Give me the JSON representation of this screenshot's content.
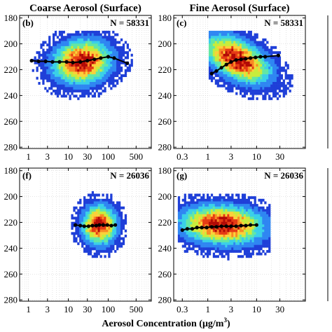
{
  "xlabel_parts": [
    "Aerosol Concentration (μg/m",
    "3",
    ")"
  ],
  "colors": {
    "colormap": [
      "#1f3fd8",
      "#2f86f2",
      "#3ad0e8",
      "#63e7a4",
      "#c8ec3c",
      "#fbd13a",
      "#f98a23",
      "#e63b14",
      "#b20a06"
    ],
    "fit_line": "#000000",
    "grid": "#c8c8c8"
  },
  "chart_data": [
    {
      "type": "heatmap",
      "title": "Coarse Aerosol (Surface)",
      "panel_label": "(b)",
      "n_text": "N = 58331",
      "x_scale": "log",
      "xlim": [
        0.6,
        1200
      ],
      "x_ticks": [
        1,
        3,
        10,
        30,
        100,
        500
      ],
      "x_tick_labels": [
        "1",
        "3",
        "10",
        "30",
        "100",
        "500"
      ],
      "y_reversed": true,
      "ylim": [
        178,
        281
      ],
      "y_ticks": [
        180,
        200,
        220,
        240,
        260,
        280
      ],
      "y_tick_labels": [
        "180",
        "200",
        "220",
        "240",
        "260",
        "280"
      ],
      "grid": true,
      "density": {
        "cx": 22,
        "cy": 214,
        "sx": 2.7,
        "sy": 10,
        "rho": -0.1,
        "xmin": 0.8,
        "xmax": 700,
        "ymin": 190,
        "ymax": 246
      },
      "series": [
        {
          "x": [
            1.2,
            1.8,
            2.7,
            4,
            6,
            9,
            13,
            20,
            30,
            45,
            65,
            100,
            140,
            300
          ],
          "y": [
            213,
            213.5,
            213.5,
            214,
            214,
            214,
            214.5,
            214,
            213,
            212,
            211,
            210,
            211,
            215
          ]
        }
      ]
    },
    {
      "type": "heatmap",
      "title": "Fine Aerosol (Surface)",
      "panel_label": "(c)",
      "n_text": "N = 58331",
      "x_scale": "log",
      "xlim": [
        0.2,
        100
      ],
      "x_ticks": [
        0.3,
        1,
        3,
        10,
        30
      ],
      "x_tick_labels": [
        "0.3",
        "1",
        "3",
        "10",
        "30"
      ],
      "y_reversed": true,
      "ylim": [
        178,
        281
      ],
      "y_ticks": [
        180,
        200,
        220,
        240,
        260,
        280
      ],
      "y_tick_labels": [
        "180",
        "200",
        "220",
        "240",
        "260",
        "280"
      ],
      "grid": true,
      "density": {
        "cx": 4,
        "cy": 212,
        "sx": 2.5,
        "sy": 11,
        "rho": 0.5,
        "xmin": 1.0,
        "xmax": 60,
        "ymin": 190,
        "ymax": 268
      },
      "series": [
        {
          "x": [
            1.2,
            1.5,
            1.9,
            2.4,
            3,
            3.8,
            4.8,
            6,
            7.5,
            9.5,
            12,
            15,
            28
          ],
          "y": [
            223,
            221,
            218.5,
            216,
            214,
            212.5,
            212,
            211.5,
            211,
            210.5,
            210,
            210,
            209
          ]
        }
      ]
    },
    {
      "type": "heatmap",
      "title": "",
      "panel_label": "(f)",
      "n_text": "N = 26036",
      "x_scale": "log",
      "xlim": [
        0.6,
        1200
      ],
      "x_ticks": [
        1,
        3,
        10,
        30,
        100,
        500
      ],
      "x_tick_labels": [
        "1",
        "3",
        "10",
        "30",
        "100",
        "500"
      ],
      "y_reversed": true,
      "ylim": [
        178,
        281
      ],
      "y_ticks": [
        180,
        200,
        220,
        240,
        260,
        280
      ],
      "y_tick_labels": [
        "180",
        "200",
        "220",
        "240",
        "260",
        "280"
      ],
      "grid": true,
      "density": {
        "cx": 60,
        "cy": 222,
        "sx": 1.8,
        "sy": 9,
        "rho": 0.0,
        "xmin": 12,
        "xmax": 300,
        "ymin": 190,
        "ymax": 270
      },
      "series": [
        {
          "x": [
            15,
            20,
            25,
            32,
            40,
            50,
            60,
            75,
            95,
            120,
            150
          ],
          "y": [
            222,
            222.5,
            223,
            223,
            222.5,
            222.5,
            222,
            222,
            222,
            222.5,
            222
          ]
        }
      ]
    },
    {
      "type": "heatmap",
      "title": "",
      "panel_label": "(g)",
      "n_text": "N = 26036",
      "x_scale": "log",
      "xlim": [
        0.2,
        100
      ],
      "x_ticks": [
        0.3,
        1,
        3,
        10,
        30
      ],
      "x_tick_labels": [
        "0.3",
        "1",
        "3",
        "10",
        "30"
      ],
      "y_reversed": true,
      "ylim": [
        178,
        281
      ],
      "y_ticks": [
        180,
        200,
        220,
        240,
        260,
        280
      ],
      "y_tick_labels": [
        "180",
        "200",
        "220",
        "240",
        "260",
        "280"
      ],
      "grid": true,
      "density": {
        "cx": 2,
        "cy": 222,
        "sx": 3.2,
        "sy": 9,
        "rho": 0.1,
        "xmin": 0.25,
        "xmax": 20,
        "ymin": 198,
        "ymax": 270
      },
      "series": [
        {
          "x": [
            0.3,
            0.38,
            0.48,
            0.6,
            0.75,
            0.95,
            1.2,
            1.5,
            1.9,
            2.4,
            3,
            3.8,
            4.8,
            6,
            7.5,
            10
          ],
          "y": [
            226,
            225,
            225,
            224,
            224,
            224,
            223.5,
            223.5,
            223,
            223,
            223,
            223,
            222.5,
            222.5,
            222,
            222
          ]
        }
      ]
    }
  ]
}
